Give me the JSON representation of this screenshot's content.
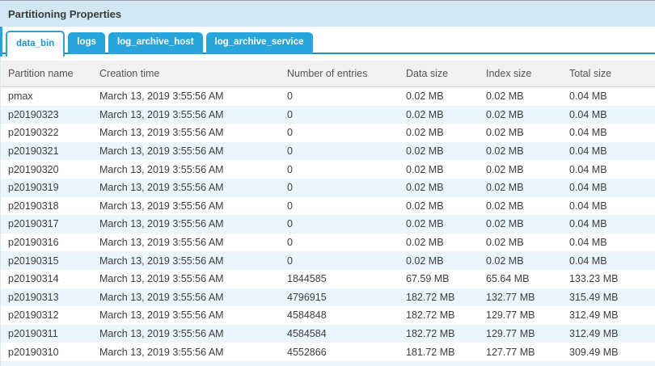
{
  "panel": {
    "title": "Partitioning Properties"
  },
  "tabs": [
    {
      "label": "data_bin",
      "active": true
    },
    {
      "label": "logs",
      "active": false
    },
    {
      "label": "log_archive_host",
      "active": false
    },
    {
      "label": "log_archive_service",
      "active": false
    }
  ],
  "table": {
    "columns": [
      "Partition name",
      "Creation time",
      "Number of entries",
      "Data size",
      "Index size",
      "Total size"
    ],
    "rows": [
      [
        "pmax",
        "March 13, 2019 3:55:56 AM",
        "0",
        "0.02 MB",
        "0.02 MB",
        "0.04 MB"
      ],
      [
        "p20190323",
        "March 13, 2019 3:55:56 AM",
        "0",
        "0.02 MB",
        "0.02 MB",
        "0.04 MB"
      ],
      [
        "p20190322",
        "March 13, 2019 3:55:56 AM",
        "0",
        "0.02 MB",
        "0.02 MB",
        "0.04 MB"
      ],
      [
        "p20190321",
        "March 13, 2019 3:55:56 AM",
        "0",
        "0.02 MB",
        "0.02 MB",
        "0.04 MB"
      ],
      [
        "p20190320",
        "March 13, 2019 3:55:56 AM",
        "0",
        "0.02 MB",
        "0.02 MB",
        "0.04 MB"
      ],
      [
        "p20190319",
        "March 13, 2019 3:55:56 AM",
        "0",
        "0.02 MB",
        "0.02 MB",
        "0.04 MB"
      ],
      [
        "p20190318",
        "March 13, 2019 3:55:56 AM",
        "0",
        "0.02 MB",
        "0.02 MB",
        "0.04 MB"
      ],
      [
        "p20190317",
        "March 13, 2019 3:55:56 AM",
        "0",
        "0.02 MB",
        "0.02 MB",
        "0.04 MB"
      ],
      [
        "p20190316",
        "March 13, 2019 3:55:56 AM",
        "0",
        "0.02 MB",
        "0.02 MB",
        "0.04 MB"
      ],
      [
        "p20190315",
        "March 13, 2019 3:55:56 AM",
        "0",
        "0.02 MB",
        "0.02 MB",
        "0.04 MB"
      ],
      [
        "p20190314",
        "March 13, 2019 3:55:56 AM",
        "1844585",
        "67.59 MB",
        "65.64 MB",
        "133.23 MB"
      ],
      [
        "p20190313",
        "March 13, 2019 3:55:56 AM",
        "4796915",
        "182.72 MB",
        "132.77 MB",
        "315.49 MB"
      ],
      [
        "p20190312",
        "March 13, 2019 3:55:56 AM",
        "4584848",
        "182.72 MB",
        "129.77 MB",
        "312.49 MB"
      ],
      [
        "p20190311",
        "March 13, 2019 3:55:56 AM",
        "4584584",
        "182.72 MB",
        "129.77 MB",
        "312.49 MB"
      ],
      [
        "p20190310",
        "March 13, 2019 3:55:56 AM",
        "4552866",
        "181.72 MB",
        "127.77 MB",
        "309.49 MB"
      ]
    ]
  },
  "colors": {
    "accent_blue": "#28a6dc",
    "tab_underline": "#1993c6",
    "active_tab_text": "#1b96cb",
    "titlebar_bg": "#d2e9f5",
    "table_header_bg": "#f1f1f1",
    "alt_row_bg": "#e9f6fd",
    "cell_text": "#3d3d3d"
  }
}
